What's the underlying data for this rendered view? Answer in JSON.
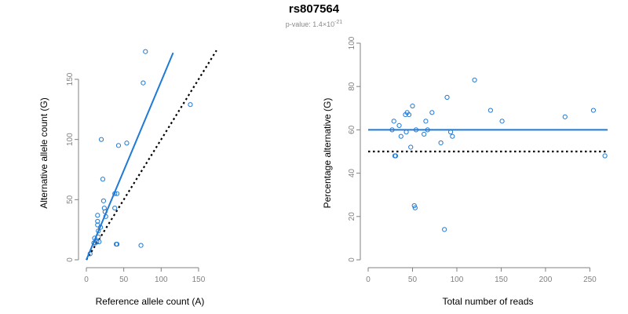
{
  "figure": {
    "title": "rs807564",
    "pvalue_prefix": "p-value: 1.4",
    "pvalue_times": "×10",
    "pvalue_exponent": "-21"
  },
  "colors": {
    "points": "#1f7ad6",
    "fit_line": "#1f7ad6",
    "reference_line": "#000000",
    "axis": "#808080",
    "tick_label": "#808080",
    "axis_label": "#000000"
  },
  "chart_data": [
    {
      "type": "scatter",
      "title": "",
      "xlabel": "Reference allele count (A)",
      "ylabel": "Alternative allele count (G)",
      "xlim": [
        0,
        170
      ],
      "ylim": [
        0,
        180
      ],
      "xticks": [
        0,
        50,
        100,
        150
      ],
      "yticks": [
        0,
        50,
        100,
        150
      ],
      "grid": false,
      "x": [
        5,
        10,
        11,
        12,
        14,
        15,
        15,
        15,
        16,
        16,
        17,
        19,
        20,
        22,
        23,
        24,
        25,
        26,
        38,
        38,
        40,
        41,
        41,
        43,
        54,
        73,
        76,
        79,
        139
      ],
      "y": [
        5,
        14,
        18,
        14,
        15,
        29,
        32,
        37,
        19,
        24,
        15,
        27,
        100,
        67,
        49,
        43,
        40,
        36,
        43,
        55,
        13,
        13,
        55,
        95,
        97,
        12,
        147,
        173,
        129
      ],
      "fit_line": {
        "x": [
          0,
          116
        ],
        "y": [
          0,
          172
        ]
      },
      "reference_line": {
        "x": [
          0,
          174
        ],
        "y": [
          0,
          174
        ]
      }
    },
    {
      "type": "scatter",
      "title": "",
      "xlabel": "Total number of reads",
      "ylabel": "Percentage alternative (G)",
      "xlim": [
        0,
        270
      ],
      "ylim": [
        0,
        100
      ],
      "xticks": [
        0,
        50,
        100,
        150,
        200,
        250
      ],
      "yticks": [
        0,
        20,
        40,
        60,
        80,
        100
      ],
      "grid": false,
      "x": [
        27,
        29,
        30,
        31,
        35,
        37,
        42,
        43,
        44,
        46,
        48,
        50,
        52,
        53,
        54,
        63,
        65,
        67,
        72,
        82,
        86,
        89,
        93,
        95,
        120,
        138,
        151,
        222,
        254,
        267
      ],
      "y": [
        60,
        64,
        48,
        48,
        62,
        57,
        67,
        59,
        68,
        67,
        52,
        71,
        25,
        24,
        60,
        58,
        64,
        60,
        68,
        54,
        14,
        75,
        59,
        57,
        83,
        69,
        64,
        66,
        69,
        48
      ],
      "fit_line": {
        "x": [
          0,
          270
        ],
        "y": [
          60,
          60
        ]
      },
      "reference_line": {
        "x": [
          0,
          270
        ],
        "y": [
          50,
          50
        ]
      }
    }
  ]
}
